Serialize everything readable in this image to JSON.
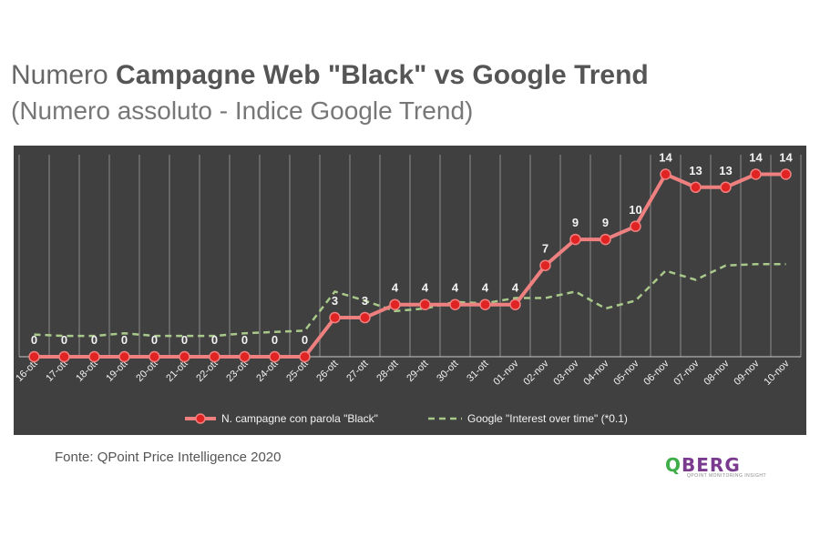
{
  "title": {
    "line1_light": "Numero ",
    "line1_bold": "Campagne Web \"Black\" vs Google Trend",
    "line2": "(Numero assoluto - Indice Google Trend)"
  },
  "source": "Fonte: QPoint Price Intelligence 2020",
  "logo": {
    "q": "Q",
    "text": "BERG",
    "tagline": "QPOINT MONITORING INSIGHT"
  },
  "colors": {
    "panel_bg": "#404040",
    "series_red": "#ee8080",
    "series_green": "#a9c98a",
    "grid": "#c8c8c8",
    "text_light": "#f2f2f2"
  },
  "chart_data": {
    "type": "line",
    "title": "Numero Campagne Web \"Black\" vs Google Trend",
    "subtitle": "(Numero assoluto - Indice Google Trend)",
    "categories": [
      "16-ott",
      "17-ott",
      "18-ott",
      "19-ott",
      "20-ott",
      "21-ott",
      "22-ott",
      "23-ott",
      "24-ott",
      "25-ott",
      "26-ott",
      "27-ott",
      "28-ott",
      "29-ott",
      "30-ott",
      "31-ott",
      "01-nov",
      "02-nov",
      "03-nov",
      "04-nov",
      "05-nov",
      "06-nov",
      "07-nov",
      "08-nov",
      "09-nov",
      "10-nov"
    ],
    "ylim": [
      0,
      15.5
    ],
    "grid": "vertical",
    "legend": "bottom",
    "series": [
      {
        "name": "N. campagne con parola \"Black\"",
        "style": "solid-markers",
        "color": "#ee8080",
        "data_labels": true,
        "values": [
          0,
          0,
          0,
          0,
          0,
          0,
          0,
          0,
          0,
          0,
          3,
          3,
          4,
          4,
          4,
          4,
          4,
          7,
          9,
          9,
          10,
          14,
          13,
          13,
          14,
          14
        ]
      },
      {
        "name": "Google \"Interest over time\" (*0.1)",
        "style": "dashed",
        "color": "#a9c98a",
        "data_labels": false,
        "values": [
          1.7,
          1.6,
          1.6,
          1.8,
          1.6,
          1.6,
          1.6,
          1.8,
          1.9,
          2.0,
          5.0,
          4.3,
          3.5,
          3.7,
          4.2,
          4.1,
          4.5,
          4.5,
          5.0,
          3.7,
          4.3,
          6.6,
          5.9,
          7.0,
          7.1,
          7.1
        ]
      }
    ]
  }
}
